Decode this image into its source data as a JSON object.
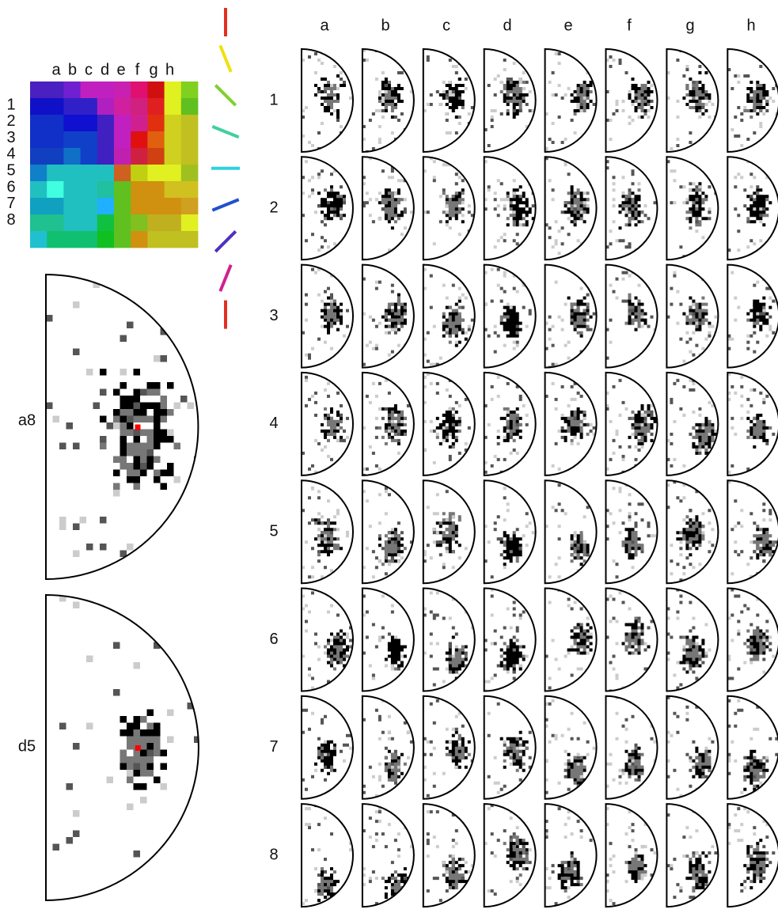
{
  "map": {
    "columns": [
      "a",
      "b",
      "c",
      "d",
      "e",
      "f",
      "g",
      "h"
    ],
    "rows": [
      "1",
      "2",
      "3",
      "4",
      "5",
      "6",
      "7",
      "8"
    ]
  },
  "examples": [
    {
      "label": "a8"
    },
    {
      "label": "d5"
    }
  ],
  "grid": {
    "columns": [
      "a",
      "b",
      "c",
      "d",
      "e",
      "f",
      "g",
      "h"
    ],
    "rows": [
      "1",
      "2",
      "3",
      "4",
      "5",
      "6",
      "7",
      "8"
    ]
  }
}
